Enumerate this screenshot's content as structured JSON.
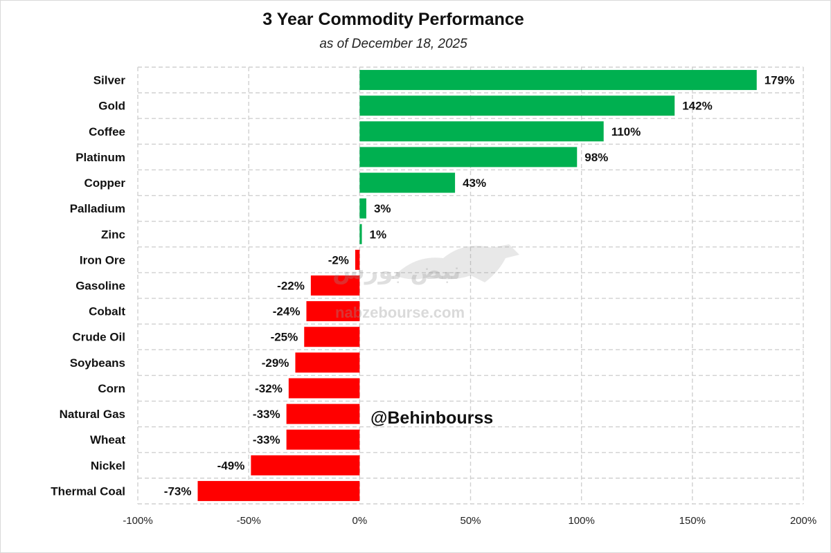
{
  "chart_data": {
    "type": "bar",
    "orientation": "horizontal",
    "title": "3 Year Commodity Performance",
    "subtitle": "as of December 18, 2025",
    "categories": [
      "Silver",
      "Gold",
      "Coffee",
      "Platinum",
      "Copper",
      "Palladium",
      "Zinc",
      "Iron Ore",
      "Gasoline",
      "Cobalt",
      "Crude Oil",
      "Soybeans",
      "Corn",
      "Natural Gas",
      "Wheat",
      "Nickel",
      "Thermal Coal"
    ],
    "values": [
      179,
      142,
      110,
      98,
      43,
      3,
      1,
      -2,
      -22,
      -24,
      -25,
      -29,
      -32,
      -33,
      -33,
      -49,
      -73
    ],
    "value_labels": [
      "179%",
      "142%",
      "110%",
      "98%",
      "43%",
      "3%",
      "1%",
      "-2%",
      "-22%",
      "-24%",
      "-25%",
      "-29%",
      "-32%",
      "-33%",
      "-33%",
      "-49%",
      "-73%"
    ],
    "xlim": [
      -100,
      200
    ],
    "x_ticks": [
      -100,
      -50,
      0,
      50,
      100,
      150,
      200
    ],
    "x_tick_labels": [
      "-100%",
      "-50%",
      "0%",
      "50%",
      "100%",
      "150%",
      "200%"
    ],
    "positive_color": "#00b050",
    "negative_color": "#ff0000",
    "grid": true,
    "grid_style": "dashed"
  },
  "handle": "@Behinbourss",
  "watermark": {
    "arabic_text": "نبض بورس",
    "url": "nabzebourse.com",
    "logo_icon": "bull-icon"
  }
}
